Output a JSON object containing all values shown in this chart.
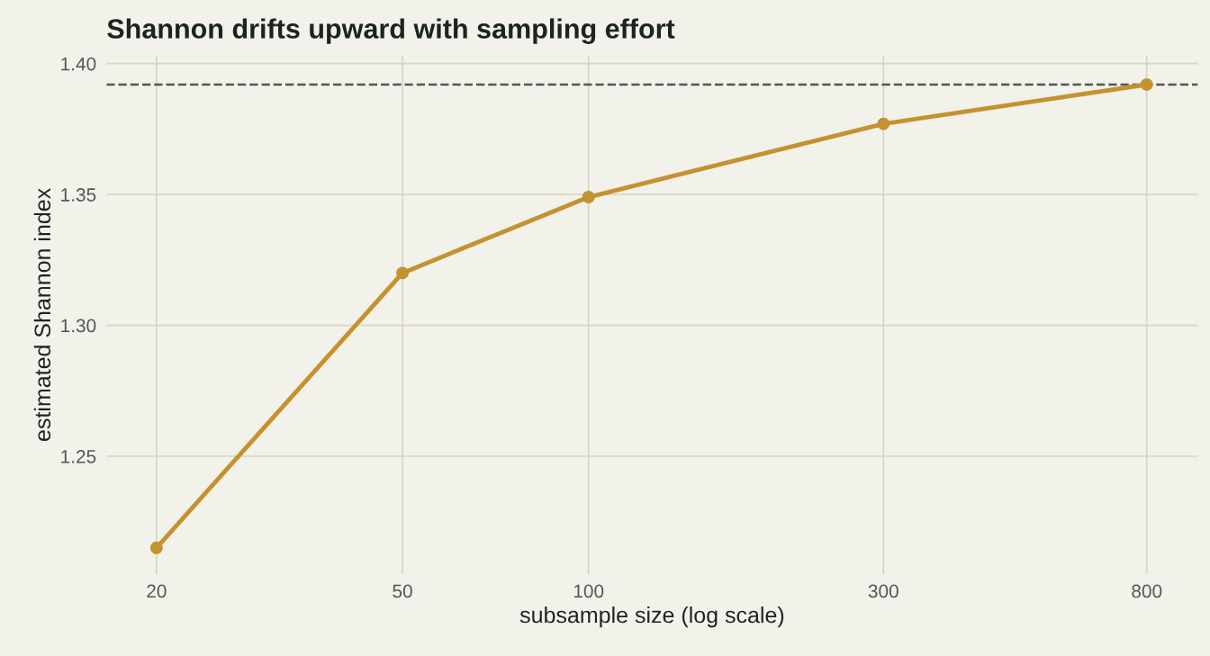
{
  "chart_data": {
    "type": "line",
    "title": "Shannon drifts upward with sampling effort",
    "xlabel": "subsample size (log scale)",
    "ylabel": "estimated Shannon index",
    "x": [
      20,
      50,
      100,
      300,
      800
    ],
    "series": [
      {
        "color": "#c4922f",
        "values": [
          1.215,
          1.32,
          1.349,
          1.377,
          1.392
        ]
      }
    ],
    "log": "x",
    "xlim": [
      16.6,
      968
    ],
    "xticks": [
      20,
      50,
      100,
      300,
      800
    ],
    "ylim": [
      1.205,
      1.403
    ],
    "yticks": [
      {
        "value": 1.25,
        "label": "1.25"
      },
      {
        "value": 1.3,
        "label": "1.30"
      },
      {
        "value": 1.35,
        "label": "1.35"
      },
      {
        "value": 1.4,
        "label": "1.40"
      }
    ],
    "ref_lines": [
      {
        "axis": "y",
        "value": 1.392,
        "label": null,
        "color": "#555555",
        "line_style": "dashed"
      }
    ],
    "grid": true,
    "marker": "circle",
    "line_style": "solid",
    "legend": false
  }
}
